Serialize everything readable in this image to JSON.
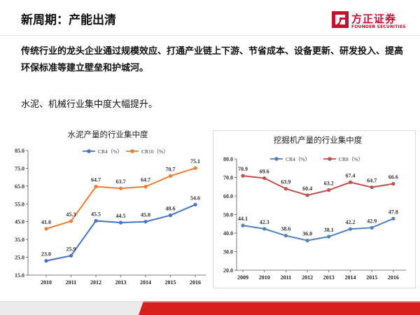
{
  "slide": {
    "title": "新周期：产能出清",
    "lead": "传统行业的龙头企业通过规模效应、打通产业链上下游、节省成本、设备更新、研发投入、提高环保标准等建立壁垒和护城河。",
    "subtitle": "水泥、机械行业集中度大幅提升。"
  },
  "logo": {
    "name_cn": "方正证券",
    "name_en": "FOUNDER SECURITIES"
  },
  "colors": {
    "brand_red": "#c8102e",
    "bar_gray": "#e8e8e8"
  },
  "chart_data": [
    {
      "type": "line",
      "title": "水泥产量的行业集中度",
      "x": [
        "2010",
        "2011",
        "2012",
        "2013",
        "2014",
        "2015",
        "2016"
      ],
      "ylim": [
        15.0,
        85.0
      ],
      "yticks": [
        "15.0",
        "25.0",
        "35.0",
        "45.0",
        "55.0",
        "65.0",
        "75.0",
        "85.0"
      ],
      "grid": false,
      "legend": "top-center",
      "series": [
        {
          "name": "CR4（%）",
          "color": "#4472c4",
          "values": [
            23.0,
            25.9,
            45.5,
            44.5,
            45.0,
            48.6,
            54.6
          ],
          "labels": [
            "23.0",
            "25.9",
            "45.5",
            "44.5",
            "45.0",
            "48.6",
            "54.6"
          ]
        },
        {
          "name": "CR10（%）",
          "color": "#ed7d31",
          "values": [
            41.0,
            45.3,
            64.7,
            63.7,
            64.7,
            70.7,
            75.1
          ],
          "labels": [
            "41.0",
            "45.3",
            "64.7",
            "63.7",
            "64.7",
            "70.7",
            "75.1"
          ]
        }
      ]
    },
    {
      "type": "line",
      "title": "挖掘机产量的行业集中度",
      "x": [
        "2009",
        "2010",
        "2011",
        "2012",
        "2013",
        "2014",
        "2015",
        "2016"
      ],
      "ylim": [
        20.0,
        80.0
      ],
      "yticks": [
        "20.0",
        "30.0",
        "40.0",
        "50.0",
        "60.0",
        "70.0",
        "80.0"
      ],
      "grid": false,
      "legend": "top-center",
      "series": [
        {
          "name": "CR4（%）",
          "color": "#4f81bd",
          "values": [
            44.1,
            42.3,
            38.6,
            36.0,
            38.1,
            42.2,
            42.9,
            47.8
          ],
          "labels": [
            "44.1",
            "42.3",
            "38.6",
            "36.0",
            "38.1",
            "42.2",
            "42.9",
            "47.8"
          ]
        },
        {
          "name": "CR8（%）",
          "color": "#c0504d",
          "values": [
            70.9,
            69.6,
            63.9,
            60.4,
            63.2,
            67.4,
            64.7,
            66.6
          ],
          "labels": [
            "70.9",
            "69.6",
            "63.9",
            "60.4",
            "63.2",
            "67.4",
            "64.7",
            "66.6"
          ]
        }
      ]
    }
  ]
}
